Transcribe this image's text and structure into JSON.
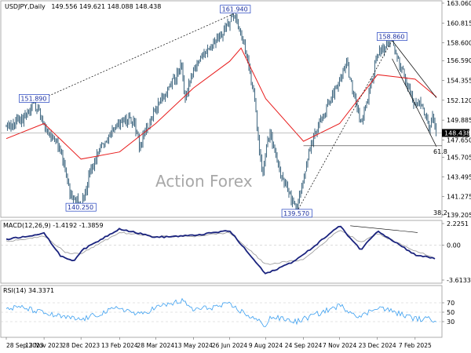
{
  "header": {
    "symbol": "USDJPY,Daily",
    "ohlc": "149.556 149.621 148.088 148.438"
  },
  "watermark": "Action Forex",
  "colors": {
    "candle": "#4a6f87",
    "ma": "#e81c1c",
    "trend": "#000000",
    "macd": "#1a237e",
    "signal": "#a0a0a0",
    "rsi": "#3b9ff0",
    "price_tag_bg": "#000000",
    "grid": "#c8c8c8"
  },
  "chart_data": [
    {
      "panel": "price",
      "type": "candlestick",
      "y_ticks": [
        "163.060",
        "160.815",
        "158.600",
        "156.590",
        "154.355",
        "152.120",
        "149.885",
        "147.650",
        "145.705",
        "143.495",
        "141.275",
        "139.205"
      ],
      "ylim": [
        139.205,
        163.06
      ],
      "x_ticks": [
        "28 Sep 2023",
        "13 Nov 2023",
        "28 Dec 2023",
        "13 Feb 2024",
        "28 Mar 2024",
        "13 May 2024",
        "26 Jun 2024",
        "9 Aug 2024",
        "24 Sep 2024",
        "7 Nov 2024",
        "23 Dec 2024",
        "7 Feb 2025"
      ],
      "last_price": "148.438",
      "price_path": [
        {
          "x": "28 Sep 2023",
          "y": 149.2
        },
        {
          "x": "18 Oct 2023",
          "y": 150.0
        },
        {
          "x": "1 Nov 2023",
          "y": 151.89
        },
        {
          "x": "13 Nov 2023",
          "y": 149.5
        },
        {
          "x": "22 Nov 2023",
          "y": 148.0
        },
        {
          "x": "4 Dec 2023",
          "y": 146.5
        },
        {
          "x": "14 Dec 2023",
          "y": 141.9
        },
        {
          "x": "28 Dec 2023",
          "y": 140.25
        },
        {
          "x": "10 Jan 2024",
          "y": 144.5
        },
        {
          "x": "25 Jan 2024",
          "y": 147.5
        },
        {
          "x": "13 Feb 2024",
          "y": 149.8
        },
        {
          "x": "1 Mar 2024",
          "y": 150.0
        },
        {
          "x": "8 Mar 2024",
          "y": 147.0
        },
        {
          "x": "28 Mar 2024",
          "y": 151.3
        },
        {
          "x": "29 Apr 2024",
          "y": 156.0
        },
        {
          "x": "3 May 2024",
          "y": 152.0
        },
        {
          "x": "13 May 2024",
          "y": 155.8
        },
        {
          "x": "26 Jun 2024",
          "y": 160.8
        },
        {
          "x": "3 Jul 2024",
          "y": 161.94
        },
        {
          "x": "17 Jul 2024",
          "y": 157.0
        },
        {
          "x": "26 Jul 2024",
          "y": 152.5
        },
        {
          "x": "5 Aug 2024",
          "y": 143.0
        },
        {
          "x": "9 Aug 2024",
          "y": 146.5
        },
        {
          "x": "15 Aug 2024",
          "y": 148.5
        },
        {
          "x": "26 Aug 2024",
          "y": 144.0
        },
        {
          "x": "16 Sep 2024",
          "y": 139.57
        },
        {
          "x": "24 Sep 2024",
          "y": 143.5
        },
        {
          "x": "2 Oct 2024",
          "y": 147.0
        },
        {
          "x": "15 Oct 2024",
          "y": 149.8
        },
        {
          "x": "7 Nov 2024",
          "y": 154.5
        },
        {
          "x": "15 Nov 2024",
          "y": 156.5
        },
        {
          "x": "3 Dec 2024",
          "y": 149.5
        },
        {
          "x": "10 Dec 2024",
          "y": 151.5
        },
        {
          "x": "23 Dec 2024",
          "y": 157.5
        },
        {
          "x": "10 Jan 2025",
          "y": 158.86
        },
        {
          "x": "24 Jan 2025",
          "y": 155.0
        },
        {
          "x": "7 Feb 2025",
          "y": 151.5
        },
        {
          "x": "14 Feb 2025",
          "y": 152.0
        },
        {
          "x": "24 Feb 2025",
          "y": 149.0
        },
        {
          "x": "28 Feb 2025",
          "y": 150.5
        },
        {
          "x": "5 Mar 2025",
          "y": 148.438
        }
      ],
      "ma_path": [
        {
          "x": "28 Sep 2023",
          "y": 147.8
        },
        {
          "x": "13 Nov 2023",
          "y": 149.5
        },
        {
          "x": "28 Dec 2023",
          "y": 145.5
        },
        {
          "x": "13 Feb 2024",
          "y": 146.3
        },
        {
          "x": "28 Mar 2024",
          "y": 149.5
        },
        {
          "x": "13 May 2024",
          "y": 153.5
        },
        {
          "x": "26 Jun 2024",
          "y": 156.5
        },
        {
          "x": "10 Jul 2024",
          "y": 158.0
        },
        {
          "x": "9 Aug 2024",
          "y": 152.3
        },
        {
          "x": "24 Sep 2024",
          "y": 147.5
        },
        {
          "x": "7 Nov 2024",
          "y": 149.5
        },
        {
          "x": "23 Dec 2024",
          "y": 155.0
        },
        {
          "x": "7 Feb 2025",
          "y": 154.5
        },
        {
          "x": "5 Mar 2025",
          "y": 152.5
        }
      ],
      "annotations": [
        {
          "label": "151.890",
          "x": "1 Nov 2023",
          "y": 151.89
        },
        {
          "label": "140.250",
          "x": "28 Dec 2023",
          "y": 140.25
        },
        {
          "label": "161.940",
          "x": "3 Jul 2024",
          "y": 161.94
        },
        {
          "label": "139.570",
          "x": "16 Sep 2024",
          "y": 139.57
        },
        {
          "label": "158.860",
          "x": "10 Jan 2025",
          "y": 158.86
        }
      ],
      "fib_labels": [
        "61.8",
        "38.2"
      ],
      "fib_618": 147.0,
      "trendlines": [
        {
          "from": {
            "x": "1 Nov 2023",
            "y": 151.89
          },
          "to": {
            "x": "3 Jul 2024",
            "y": 161.94
          },
          "style": "dotted"
        },
        {
          "from": {
            "x": "16 Sep 2024",
            "y": 139.57
          },
          "to": {
            "x": "10 Jan 2025",
            "y": 158.86
          },
          "style": "dotted"
        },
        {
          "from": {
            "x": "10 Jan 2025",
            "y": 158.86
          },
          "to": {
            "x": "5 Mar 2025",
            "y": 152.4
          },
          "style": "solid"
        },
        {
          "from": {
            "x": "10 Jan 2025",
            "y": 156.8
          },
          "to": {
            "x": "5 Mar 2025",
            "y": 146.9
          },
          "style": "solid"
        }
      ]
    },
    {
      "panel": "macd",
      "type": "line",
      "title": "MACD(12,26,9) -1.4192 -1.3859",
      "y_ticks": [
        "2.2251",
        "0.00",
        "-3.6133"
      ],
      "ylim": [
        -3.6133,
        2.2251
      ],
      "series_macd": [
        {
          "x": "28 Sep 2023",
          "y": 0.6
        },
        {
          "x": "13 Nov 2023",
          "y": 1.2
        },
        {
          "x": "4 Dec 2023",
          "y": -1.2
        },
        {
          "x": "20 Dec 2023",
          "y": -1.6
        },
        {
          "x": "28 Dec 2023",
          "y": -0.6
        },
        {
          "x": "13 Feb 2024",
          "y": 1.7
        },
        {
          "x": "28 Mar 2024",
          "y": 0.8
        },
        {
          "x": "13 May 2024",
          "y": 1.0
        },
        {
          "x": "26 Jun 2024",
          "y": 1.5
        },
        {
          "x": "9 Aug 2024",
          "y": -3.0
        },
        {
          "x": "9 Sep 2024",
          "y": -1.8
        },
        {
          "x": "24 Sep 2024",
          "y": -1.0
        },
        {
          "x": "7 Nov 2024",
          "y": 2.0
        },
        {
          "x": "3 Dec 2024",
          "y": -0.5
        },
        {
          "x": "23 Dec 2024",
          "y": 1.5
        },
        {
          "x": "7 Feb 2025",
          "y": -1.0
        },
        {
          "x": "5 Mar 2025",
          "y": -1.4192
        }
      ],
      "series_signal": [
        {
          "x": "28 Sep 2023",
          "y": 0.4
        },
        {
          "x": "13 Nov 2023",
          "y": 0.9
        },
        {
          "x": "10 Dec 2023",
          "y": -0.8
        },
        {
          "x": "28 Dec 2023",
          "y": -0.9
        },
        {
          "x": "13 Feb 2024",
          "y": 1.3
        },
        {
          "x": "28 Mar 2024",
          "y": 0.9
        },
        {
          "x": "13 May 2024",
          "y": 0.9
        },
        {
          "x": "26 Jun 2024",
          "y": 1.3
        },
        {
          "x": "9 Aug 2024",
          "y": -2.0
        },
        {
          "x": "24 Sep 2024",
          "y": -1.5
        },
        {
          "x": "7 Nov 2024",
          "y": 1.6
        },
        {
          "x": "3 Dec 2024",
          "y": 0.3
        },
        {
          "x": "23 Dec 2024",
          "y": 1.2
        },
        {
          "x": "7 Feb 2025",
          "y": -0.6
        },
        {
          "x": "5 Mar 2025",
          "y": -1.3859
        }
      ],
      "divergence_line": {
        "from": {
          "x": "20 Nov 2024",
          "y": 2.0
        },
        "to": {
          "x": "10 Feb 2025",
          "y": 1.3
        }
      }
    },
    {
      "panel": "rsi",
      "type": "line",
      "title": "RSI(14) 34.3371",
      "y_ticks": [
        "70",
        "50",
        "30"
      ],
      "ylim": [
        0,
        100
      ],
      "series": [
        {
          "x": "28 Sep 2023",
          "y": 58
        },
        {
          "x": "18 Oct 2023",
          "y": 60
        },
        {
          "x": "13 Nov 2023",
          "y": 48
        },
        {
          "x": "4 Dec 2023",
          "y": 40
        },
        {
          "x": "28 Dec 2023",
          "y": 34
        },
        {
          "x": "13 Feb 2024",
          "y": 60
        },
        {
          "x": "8 Mar 2024",
          "y": 44
        },
        {
          "x": "28 Mar 2024",
          "y": 60
        },
        {
          "x": "29 Apr 2024",
          "y": 74
        },
        {
          "x": "13 May 2024",
          "y": 55
        },
        {
          "x": "26 Jun 2024",
          "y": 66
        },
        {
          "x": "9 Aug 2024",
          "y": 22
        },
        {
          "x": "15 Aug 2024",
          "y": 40
        },
        {
          "x": "16 Sep 2024",
          "y": 30
        },
        {
          "x": "7 Nov 2024",
          "y": 64
        },
        {
          "x": "3 Dec 2024",
          "y": 40
        },
        {
          "x": "23 Dec 2024",
          "y": 62
        },
        {
          "x": "7 Feb 2025",
          "y": 36
        },
        {
          "x": "5 Mar 2025",
          "y": 34.3371
        }
      ]
    }
  ]
}
